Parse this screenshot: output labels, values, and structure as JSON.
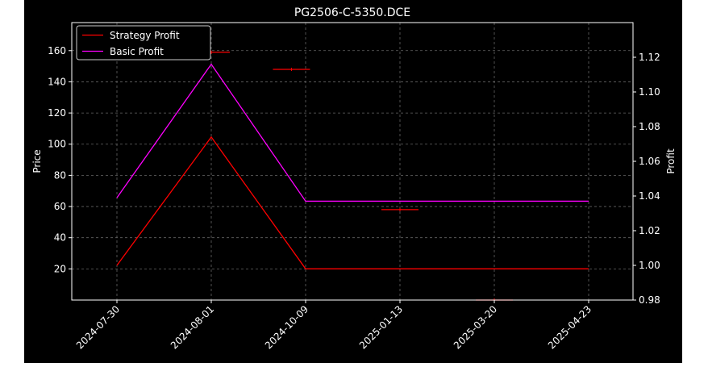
{
  "chart_data": {
    "type": "line",
    "title": "PG2506-C-5350.DCE",
    "ylabel": "Price",
    "y2label": "Profit",
    "categories": [
      "2024-07-30",
      "2024-08-01",
      "2024-10-09",
      "2025-01-13",
      "2025-03-20",
      "2025-04-23"
    ],
    "price_axis": {
      "ylim": [
        0,
        178
      ],
      "ticks": [
        20,
        40,
        60,
        80,
        100,
        120,
        140,
        160
      ]
    },
    "profit_axis": {
      "ylim": [
        0.98,
        1.14
      ],
      "ticks": [
        "0.98",
        "1.00",
        "1.02",
        "1.04",
        "1.06",
        "1.08",
        "1.10",
        "1.12"
      ]
    },
    "grid": true,
    "legend_position": "top-left",
    "series": [
      {
        "name": "Strategy Profit",
        "color": "#ff0000",
        "axis": "profit",
        "values": [
          1.0,
          1.074,
          0.998,
          0.998,
          0.998,
          0.998
        ]
      },
      {
        "name": "Basic Profit",
        "color": "#ff00ff",
        "axis": "profit",
        "values": [
          1.039,
          1.116,
          1.037,
          1.037,
          1.037,
          1.037
        ]
      }
    ],
    "price_marks": {
      "color": "#ff0000",
      "points": [
        {
          "x": 1,
          "price": 159
        },
        {
          "x": 1.85,
          "price": 148
        },
        {
          "x": 3,
          "price": 58
        },
        {
          "x": 4,
          "price": 0
        }
      ]
    }
  }
}
